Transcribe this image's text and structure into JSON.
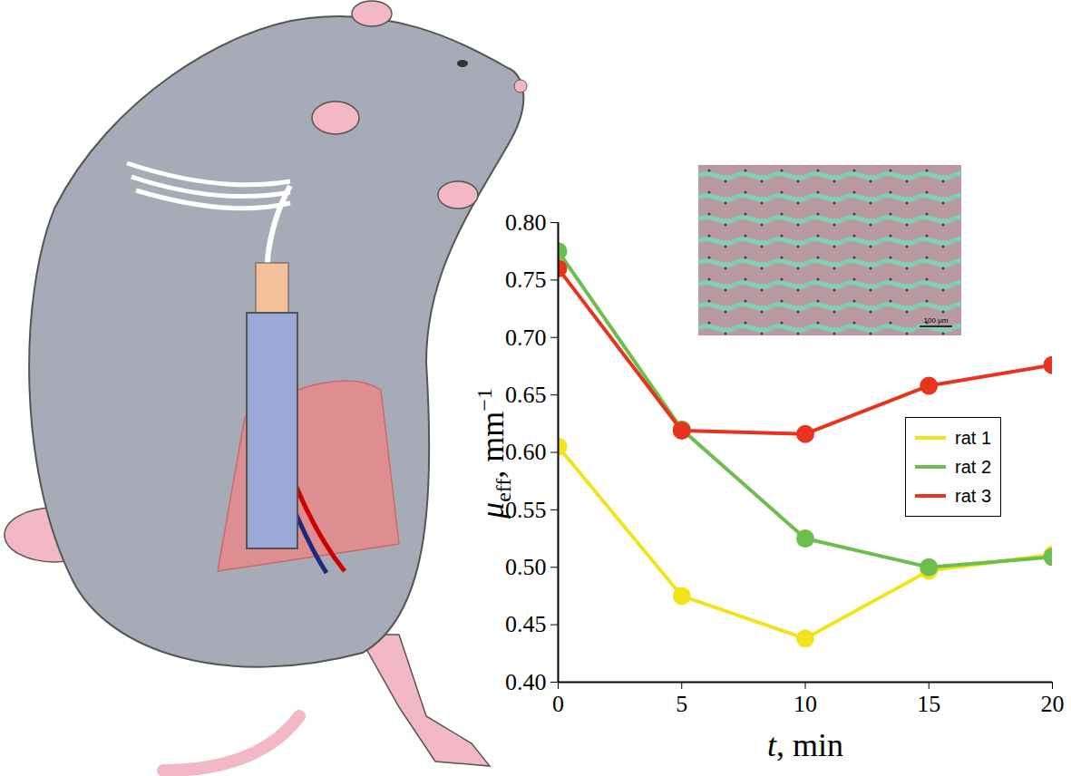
{
  "chart_data": {
    "type": "line",
    "x_label": {
      "symbol": "t",
      "text": ", min"
    },
    "y_label": {
      "symbol": "μ",
      "subscript": "eff",
      "unit": ", mm",
      "superscript": "−1"
    },
    "x": [
      0,
      5,
      10,
      15,
      20
    ],
    "series": [
      {
        "name": "rat 1",
        "color": "#f2e41c",
        "values": [
          0.605,
          0.475,
          0.438,
          0.497,
          0.511
        ]
      },
      {
        "name": "rat 2",
        "color": "#6cbf4f",
        "values": [
          0.775,
          0.62,
          0.525,
          0.5,
          0.509
        ]
      },
      {
        "name": "rat 3",
        "color": "#e8341e",
        "values": [
          0.76,
          0.619,
          0.616,
          0.658,
          0.676
        ]
      }
    ],
    "xlim": [
      0,
      20
    ],
    "xticks": [
      0,
      5,
      10,
      15,
      20
    ],
    "ylim": [
      0.4,
      0.8
    ],
    "yticks": [
      {
        "value": 0.4,
        "label": "0.40"
      },
      0.45,
      {
        "value": 0.5,
        "label": "0.50"
      },
      0.55,
      {
        "value": 0.6,
        "label": "0.60"
      },
      0.65,
      {
        "value": 0.7,
        "label": "0.70"
      },
      0.75,
      {
        "value": 0.8,
        "label": "0.80"
      }
    ],
    "marker": "circle",
    "legend": "right",
    "grid": false,
    "annotations": [
      "100 μm"
    ]
  }
}
